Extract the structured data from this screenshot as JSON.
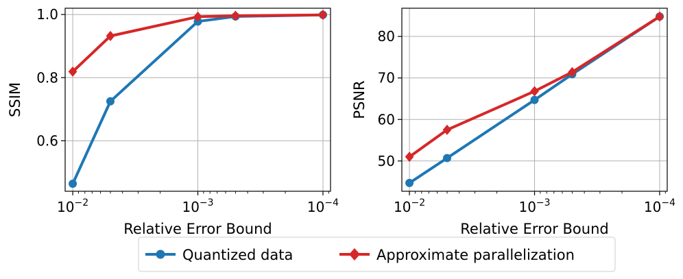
{
  "legend": {
    "items": [
      {
        "label": "Quantized data",
        "color": "#1f77b4",
        "marker": "circle"
      },
      {
        "label": "Approximate parallelization",
        "color": "#d62728",
        "marker": "diamond"
      }
    ],
    "placement": "bottom-center"
  },
  "chart_data": [
    {
      "type": "line",
      "xlabel": "Relative Error Bound",
      "ylabel": "SSIM",
      "x": [
        0.01,
        0.005,
        0.001,
        0.0005,
        0.0001
      ],
      "x_scale": "log",
      "x_inverted": true,
      "xlim": [
        0.0115,
        8.7e-05
      ],
      "ylim": [
        0.44,
        1.02
      ],
      "x_ticks": [
        0.01,
        0.001,
        0.0001
      ],
      "x_tick_labels": [
        {
          "base": "10",
          "exp": "−2"
        },
        {
          "base": "10",
          "exp": "−3"
        },
        {
          "base": "10",
          "exp": "−4"
        }
      ],
      "y_ticks": [
        0.6,
        0.8,
        1.0
      ],
      "y_tick_labels": [
        "0.6",
        "0.8",
        "1.0"
      ],
      "grid": true,
      "series": [
        {
          "name": "Quantized data",
          "color": "#1f77b4",
          "marker": "circle",
          "values": [
            0.464,
            0.725,
            0.978,
            0.994,
            0.999
          ]
        },
        {
          "name": "Approximate parallelization",
          "color": "#d62728",
          "marker": "diamond",
          "values": [
            0.819,
            0.932,
            0.993,
            0.996,
            0.999
          ]
        }
      ]
    },
    {
      "type": "line",
      "xlabel": "Relative Error Bound",
      "ylabel": "PSNR",
      "x": [
        0.01,
        0.005,
        0.001,
        0.0005,
        0.0001
      ],
      "x_scale": "log",
      "x_inverted": true,
      "xlim": [
        0.0115,
        8.7e-05
      ],
      "ylim": [
        42.7,
        86.8
      ],
      "x_ticks": [
        0.01,
        0.001,
        0.0001
      ],
      "x_tick_labels": [
        {
          "base": "10",
          "exp": "−2"
        },
        {
          "base": "10",
          "exp": "−3"
        },
        {
          "base": "10",
          "exp": "−4"
        }
      ],
      "y_ticks": [
        50,
        60,
        70,
        80
      ],
      "y_tick_labels": [
        "50",
        "60",
        "70",
        "80"
      ],
      "grid": true,
      "series": [
        {
          "name": "Quantized data",
          "color": "#1f77b4",
          "marker": "circle",
          "values": [
            44.7,
            50.7,
            64.7,
            70.9,
            84.8
          ]
        },
        {
          "name": "Approximate parallelization",
          "color": "#d62728",
          "marker": "diamond",
          "values": [
            51.0,
            57.5,
            66.8,
            71.4,
            84.8
          ]
        }
      ]
    }
  ]
}
